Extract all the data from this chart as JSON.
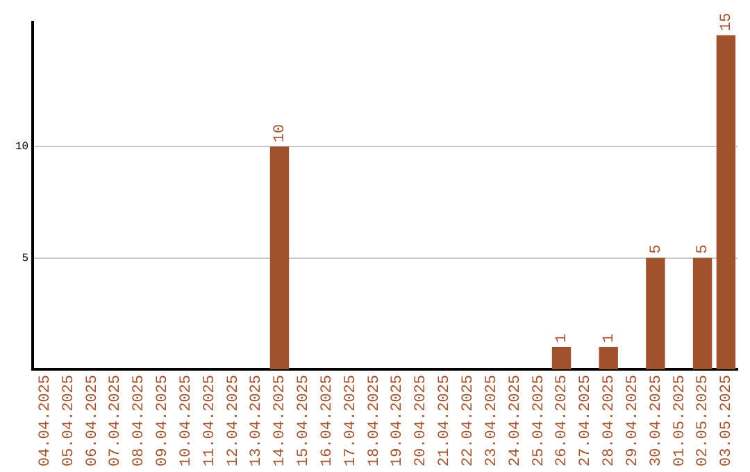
{
  "chart_data": {
    "type": "bar",
    "categories": [
      "04.04.2025",
      "05.04.2025",
      "06.04.2025",
      "07.04.2025",
      "08.04.2025",
      "09.04.2025",
      "10.04.2025",
      "11.04.2025",
      "12.04.2025",
      "13.04.2025",
      "14.04.2025",
      "15.04.2025",
      "16.04.2025",
      "17.04.2025",
      "18.04.2025",
      "19.04.2025",
      "20.04.2025",
      "21.04.2025",
      "22.04.2025",
      "23.04.2025",
      "24.04.2025",
      "25.04.2025",
      "26.04.2025",
      "27.04.2025",
      "28.04.2025",
      "29.04.2025",
      "30.04.2025",
      "01.05.2025",
      "02.05.2025",
      "03.05.2025"
    ],
    "values": [
      0,
      0,
      0,
      0,
      0,
      0,
      0,
      0,
      0,
      0,
      10,
      0,
      0,
      0,
      0,
      0,
      0,
      0,
      0,
      0,
      0,
      0,
      1,
      0,
      1,
      0,
      5,
      0,
      5,
      15
    ],
    "value_labels": [
      null,
      null,
      null,
      null,
      null,
      null,
      null,
      null,
      null,
      null,
      "10",
      null,
      null,
      null,
      null,
      null,
      null,
      null,
      null,
      null,
      null,
      null,
      "1",
      null,
      "1",
      null,
      "5",
      null,
      "5",
      "15"
    ],
    "color": "#a0522d",
    "ylim": [
      0,
      15.6
    ],
    "yticks": [
      5,
      10
    ],
    "grid": "y"
  }
}
